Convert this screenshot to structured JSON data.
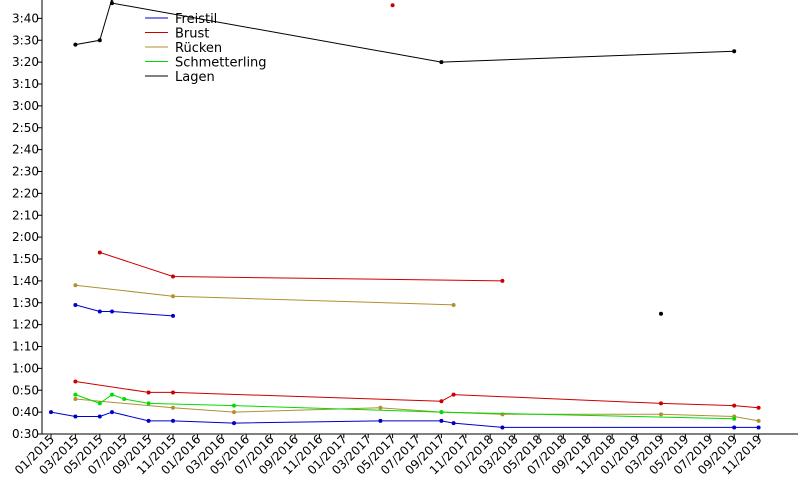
{
  "chart_data": {
    "type": "line",
    "title": "",
    "xlabel": "",
    "ylabel": "",
    "x_unit": "month",
    "x_domain": [
      "2015-01",
      "2019-12"
    ],
    "y_unit": "m:ss",
    "ylim": [
      "0:30",
      "3:50"
    ],
    "grid": false,
    "legend": "top-left",
    "x_ticks": [
      "01/2015",
      "03/2015",
      "05/2015",
      "07/2015",
      "09/2015",
      "11/2015",
      "01/2016",
      "03/2016",
      "05/2016",
      "07/2016",
      "09/2016",
      "11/2016",
      "01/2017",
      "03/2017",
      "05/2017",
      "07/2017",
      "09/2017",
      "11/2017",
      "01/2018",
      "03/2018",
      "05/2018",
      "07/2018",
      "09/2018",
      "11/2018",
      "01/2019",
      "03/2019",
      "05/2019",
      "07/2019",
      "09/2019",
      "11/2019"
    ],
    "y_ticks": [
      "0:30",
      "0:40",
      "0:50",
      "1:00",
      "1:10",
      "1:20",
      "1:30",
      "1:40",
      "1:50",
      "2:00",
      "2:10",
      "2:20",
      "2:30",
      "2:40",
      "2:50",
      "3:00",
      "3:10",
      "3:20",
      "3:30",
      "3:40"
    ],
    "series": [
      {
        "name": "Freistil",
        "color": "#0000cc",
        "lines": [
          [
            [
              "2015-01",
              "0:40"
            ],
            [
              "2015-03",
              "0:38"
            ],
            [
              "2015-05",
              "0:38"
            ],
            [
              "2015-06",
              "0:40"
            ],
            [
              "2015-09",
              "0:36"
            ],
            [
              "2015-11",
              "0:36"
            ],
            [
              "2016-04",
              "0:35"
            ],
            [
              "2017-04",
              "0:36"
            ],
            [
              "2017-09",
              "0:36"
            ],
            [
              "2017-10",
              "0:35"
            ],
            [
              "2018-02",
              "0:33"
            ],
            [
              "2019-09",
              "0:33"
            ],
            [
              "2019-11",
              "0:33"
            ]
          ],
          [
            [
              "2015-03",
              "1:29"
            ],
            [
              "2015-05",
              "1:26"
            ],
            [
              "2015-06",
              "1:26"
            ],
            [
              "2015-11",
              "1:24"
            ]
          ]
        ],
        "points": []
      },
      {
        "name": "Brust",
        "color": "#cc0000",
        "lines": [
          [
            [
              "2015-03",
              "0:54"
            ],
            [
              "2015-09",
              "0:49"
            ],
            [
              "2015-11",
              "0:49"
            ],
            [
              "2017-09",
              "0:45"
            ],
            [
              "2017-10",
              "0:48"
            ],
            [
              "2019-03",
              "0:44"
            ],
            [
              "2019-09",
              "0:43"
            ],
            [
              "2019-11",
              "0:42"
            ]
          ],
          [
            [
              "2015-05",
              "1:53"
            ],
            [
              "2015-11",
              "1:42"
            ],
            [
              "2018-02",
              "1:40"
            ]
          ]
        ],
        "points": [
          [
            "2017-05",
            "3:46"
          ]
        ]
      },
      {
        "name": "Rücken",
        "color": "#b09030",
        "lines": [
          [
            [
              "2015-03",
              "0:46"
            ],
            [
              "2015-11",
              "0:42"
            ],
            [
              "2016-04",
              "0:40"
            ],
            [
              "2017-04",
              "0:42"
            ],
            [
              "2017-09",
              "0:40"
            ],
            [
              "2018-02",
              "0:39"
            ],
            [
              "2019-03",
              "0:39"
            ],
            [
              "2019-09",
              "0:38"
            ],
            [
              "2019-11",
              "0:36"
            ]
          ],
          [
            [
              "2015-03",
              "1:38"
            ],
            [
              "2015-11",
              "1:33"
            ],
            [
              "2017-10",
              "1:29"
            ]
          ]
        ],
        "points": []
      },
      {
        "name": "Schmetterling",
        "color": "#00dd00",
        "lines": [
          [
            [
              "2015-03",
              "0:48"
            ],
            [
              "2015-05",
              "0:44"
            ],
            [
              "2015-06",
              "0:48"
            ],
            [
              "2015-07",
              "0:46"
            ],
            [
              "2015-09",
              "0:44"
            ],
            [
              "2016-04",
              "0:43"
            ],
            [
              "2017-09",
              "0:40"
            ],
            [
              "2019-09",
              "0:37"
            ]
          ]
        ],
        "points": []
      },
      {
        "name": "Lagen",
        "color": "#000000",
        "lines": [
          [
            [
              "2015-03",
              "3:28"
            ],
            [
              "2015-05",
              "3:30"
            ],
            [
              "2015-06",
              "3:49"
            ],
            [
              "2015-06",
              "3:47"
            ],
            [
              "2017-09",
              "3:20"
            ],
            [
              "2019-09",
              "3:25"
            ]
          ]
        ],
        "points": [
          [
            "2019-03",
            "1:25"
          ]
        ]
      }
    ]
  }
}
